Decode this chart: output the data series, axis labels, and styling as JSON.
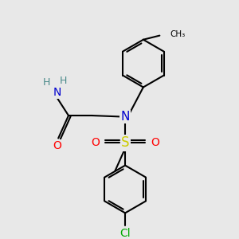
{
  "background_color": "#e8e8e8",
  "atom_colors": {
    "C": "#000000",
    "N": "#0000cd",
    "O": "#ff0000",
    "S": "#cccc00",
    "Cl": "#00aa00",
    "H": "#4a8a8a",
    "NH2_N": "#0000cd",
    "NH2_H": "#4a8a8a"
  },
  "bond_color": "#000000",
  "bond_width": 1.5,
  "figsize": [
    3.0,
    3.0
  ],
  "dpi": 100,
  "xlim": [
    0,
    10
  ],
  "ylim": [
    0,
    10
  ]
}
